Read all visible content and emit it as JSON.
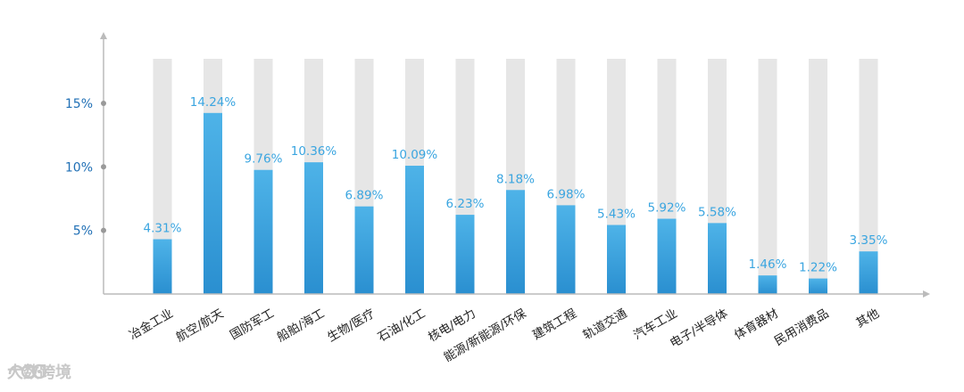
{
  "chart_data": {
    "type": "bar",
    "categories": [
      "冶金工业",
      "航空/航天",
      "国防军工",
      "船舶/海工",
      "生物/医疗",
      "石油/化工",
      "核电/电力",
      "能源/新能源/环保",
      "建筑工程",
      "轨道交通",
      "汽车工业",
      "电子/半导体",
      "体育器材",
      "民用消费品",
      "其他"
    ],
    "values": [
      4.31,
      14.24,
      9.76,
      10.36,
      6.89,
      10.09,
      6.23,
      8.18,
      6.98,
      5.43,
      5.92,
      5.58,
      1.46,
      1.22,
      3.35
    ],
    "data_labels": [
      "4.31%",
      "14.24%",
      "9.76%",
      "10.36%",
      "6.89%",
      "10.09%",
      "6.23%",
      "8.18%",
      "6.98%",
      "5.43%",
      "5.92%",
      "5.58%",
      "1.46%",
      "1.22%",
      "3.35%"
    ],
    "y_ticks": [
      {
        "value": 5,
        "label": "5%"
      },
      {
        "value": 10,
        "label": "10%"
      },
      {
        "value": 15,
        "label": "15%"
      }
    ],
    "ylim": [
      0,
      18.5
    ],
    "title": "",
    "xlabel": "",
    "ylabel": "",
    "grid": false,
    "colors": {
      "bar_top": "#4eb3e8",
      "bar_bottom": "#2a8fd0",
      "background_bar": "#e6e6e6",
      "axis": "#bbbbbb",
      "tick_label": "#1f6fb5",
      "data_label": "#3aa5e0"
    }
  },
  "watermark": {
    "text": "大数跨境",
    "icon": "eye-logo-icon"
  }
}
